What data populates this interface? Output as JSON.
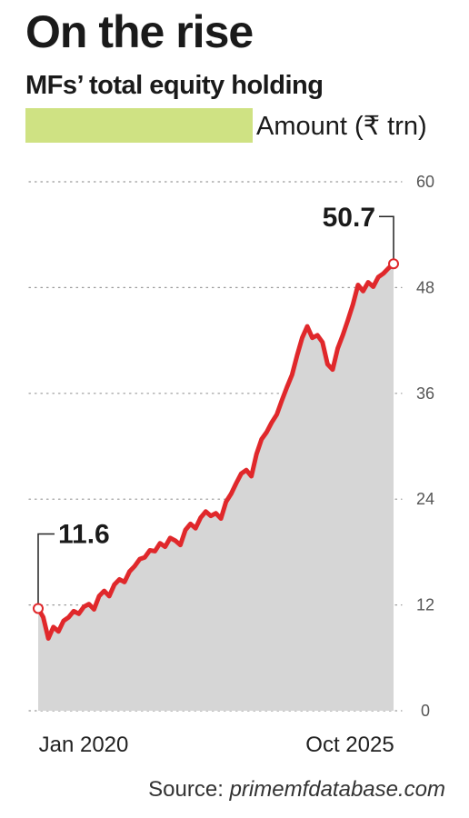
{
  "header": {
    "title": "On the rise",
    "subtitle": "MFs’ total equity holding"
  },
  "legend": {
    "label": "Amount (₹ trn)",
    "swatch_color": "#cfe283"
  },
  "source": {
    "prefix": "Source: ",
    "site": "primemfdatabase.com"
  },
  "colors": {
    "line": "#e0282b",
    "area": "#d6d6d6",
    "grid": "#999999"
  },
  "chart_data": {
    "type": "area",
    "title": "On the rise",
    "subtitle": "MFs’ total equity holding",
    "series": [
      {
        "name": "Amount (₹ trn)",
        "x": [
          0,
          1,
          2,
          3,
          4,
          5,
          6,
          7,
          8,
          9,
          10,
          11,
          12,
          13,
          14,
          15,
          16,
          17,
          18,
          19,
          20,
          21,
          22,
          23,
          24,
          25,
          26,
          27,
          28,
          29,
          30,
          31,
          32,
          33,
          34,
          35,
          36,
          37,
          38,
          39,
          40,
          41,
          42,
          43,
          44,
          45,
          46,
          47,
          48,
          49,
          50,
          51,
          52,
          53,
          54,
          55,
          56,
          57,
          58,
          59,
          60,
          61,
          62,
          63,
          64,
          65,
          66,
          67,
          68,
          69,
          70
        ],
        "values": [
          11.6,
          10.6,
          8.2,
          9.5,
          9.0,
          10.2,
          10.6,
          11.3,
          11.0,
          11.8,
          12.1,
          11.5,
          13.0,
          13.6,
          13.0,
          14.3,
          14.9,
          14.6,
          15.8,
          16.4,
          17.2,
          17.4,
          18.2,
          18.1,
          19.0,
          18.6,
          19.6,
          19.3,
          18.8,
          20.5,
          21.2,
          20.7,
          21.9,
          22.6,
          22.1,
          22.4,
          21.8,
          23.7,
          24.6,
          25.8,
          26.9,
          27.3,
          26.6,
          29.1,
          30.8,
          31.6,
          32.7,
          33.6,
          35.2,
          36.7,
          38.1,
          40.3,
          42.3,
          43.6,
          42.3,
          42.6,
          41.8,
          39.3,
          38.7,
          41.1,
          42.6,
          44.3,
          46.1,
          48.3,
          47.6,
          48.6,
          48.1,
          49.2,
          49.6,
          50.2,
          50.7
        ]
      }
    ],
    "x_tick_labels": [
      "Jan 2020",
      "Oct 2025"
    ],
    "y_ticks": [
      0,
      12,
      24,
      36,
      48,
      60
    ],
    "ylim": [
      0,
      60
    ],
    "annotations": [
      {
        "text": "11.6",
        "value": 11.6,
        "at": "start"
      },
      {
        "text": "50.7",
        "value": 50.7,
        "at": "end"
      }
    ],
    "grid": "dotted horizontal",
    "legend_position": "top-left"
  }
}
